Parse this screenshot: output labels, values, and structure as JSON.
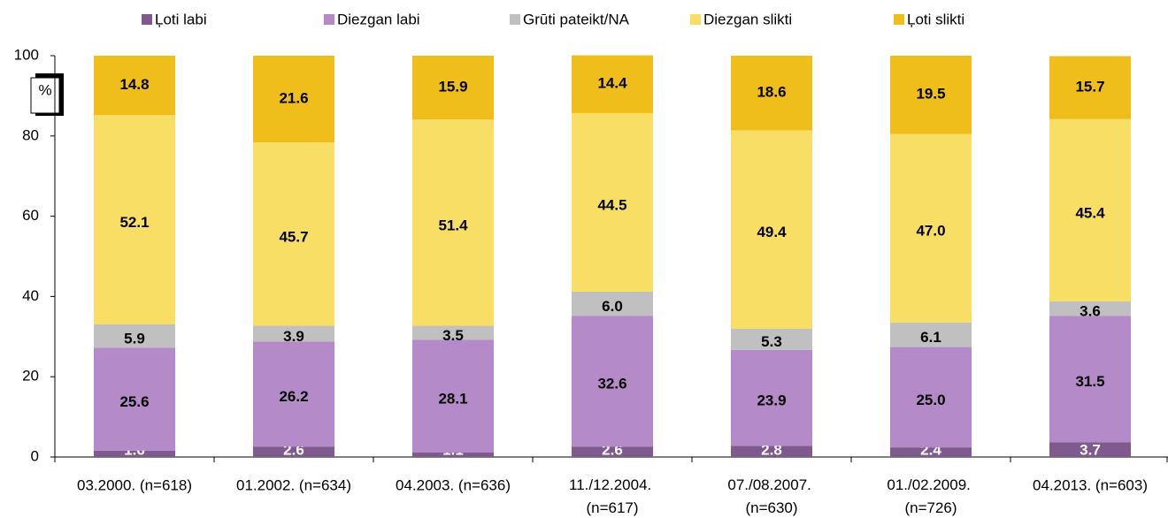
{
  "chart_data": {
    "type": "stacked_bar",
    "y_unit": "%",
    "categories": [
      "03.2000. (n=618)",
      "01.2002. (n=634)",
      "04.2003. (n=636)",
      "11./12.2004. (n=617)",
      "07./08.2007. (n=630)",
      "01./02.2009. (n=726)",
      "04.2013. (n=603)"
    ],
    "series": [
      {
        "name": "Ļoti labi",
        "color": "#7e5a8e",
        "values": [
          1.6,
          2.6,
          1.1,
          2.6,
          2.8,
          2.4,
          3.7
        ],
        "value_labels": [
          "1.6",
          "2.6",
          "1.1",
          "2.6",
          "2.8",
          "2.4",
          "3.7"
        ]
      },
      {
        "name": "Diezgan labi",
        "color": "#b58ac8",
        "values": [
          25.6,
          26.2,
          28.1,
          32.6,
          23.9,
          25.0,
          31.5
        ],
        "value_labels": [
          "25.6",
          "26.2",
          "28.1",
          "32.6",
          "23.9",
          "25.0",
          "31.5"
        ]
      },
      {
        "name": "Grūti pateikt/NA",
        "color": "#c0c0c0",
        "values": [
          5.9,
          3.9,
          3.5,
          6.0,
          5.3,
          6.1,
          3.6
        ],
        "value_labels": [
          "5.9",
          "3.9",
          "3.5",
          "6.0",
          "5.3",
          "6.1",
          "3.6"
        ]
      },
      {
        "name": "Diezgan slikti",
        "color": "#f9de65",
        "values": [
          52.1,
          45.7,
          51.4,
          44.5,
          49.4,
          47.0,
          45.4
        ],
        "value_labels": [
          "52.1",
          "45.7",
          "51.4",
          "44.5",
          "49.4",
          "47.0",
          "45.4"
        ]
      },
      {
        "name": "Ļoti slikti",
        "color": "#efbe1a",
        "values": [
          14.8,
          21.6,
          15.9,
          14.4,
          18.6,
          19.5,
          15.7
        ],
        "value_labels": [
          "14.8",
          "21.6",
          "15.9",
          "14.4",
          "18.6",
          "19.5",
          "15.7"
        ]
      }
    ],
    "ylim": [
      0,
      100
    ],
    "yticks": [
      0,
      20,
      40,
      60,
      80,
      100
    ],
    "grid": false,
    "legend": "top"
  }
}
